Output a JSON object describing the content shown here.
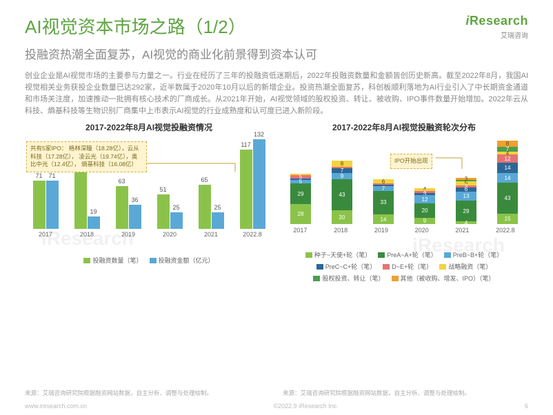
{
  "branding": {
    "logo_text": "iResearch",
    "logo_sub": "艾瑞咨询",
    "watermark1": "iResearch",
    "watermark2": "iResearch"
  },
  "header": {
    "title": "AI视觉资本市场之路（1/2）",
    "subtitle": "投融资热潮全面复苏，AI视觉的商业化前景得到资本认可"
  },
  "paragraph": "创业企业是AI视觉市场的主要参与力量之一。行业在经历了三年的投融资低迷期后，2022年投融资数量和金额皆创历史新高。截至2022年8月，我国AI视觉相关业务获投企业数量已达292家，近半数属于2020年10月以后的新增企业。投资热潮全面复苏，科创板顺利落地为AI行业引入了中长期资金通道和市场关注度，加速推动一批拥有核心技术的厂商成长。从2021年开始，AI视觉领域的股权投资、转让、被收购、IPO事件数量开始增加。2022年云从科技、熵基科技等生物识别厂商集中上市表示AI视觉的行业成熟度和认可度已进入新阶段。",
  "chart_left": {
    "title": "2017-2022年8月AI视觉投融资情况",
    "categories": [
      "2017",
      "2018",
      "2019",
      "2020",
      "2021",
      "2022.8"
    ],
    "series": [
      {
        "name": "投融资数量（笔）",
        "color": "#8bc34a",
        "values": [
          71,
          89,
          63,
          51,
          65,
          117
        ]
      },
      {
        "name": "投融资金额（亿元）",
        "color": "#5aa8d6",
        "values": [
          71,
          19,
          36,
          25,
          25,
          132
        ]
      }
    ],
    "ymax": 140,
    "callout": "共有5家IPO：\n格林深瞳（18.28亿），云从科技（17.28亿），\n凌云光（19.74亿），奥比中光（12.4亿），\n熵基科技（16.08亿）",
    "source": "来源：艾瑞咨询研究院根据融资网站数据，自主分析、调整与处理绘制。"
  },
  "chart_right": {
    "title": "2017-2022年8月AI视觉投融资轮次分布",
    "categories": [
      "2017",
      "2018",
      "2019",
      "2020",
      "2021",
      "2022.8"
    ],
    "ymax": 118,
    "colors": {
      "seed": "#8bc34a",
      "preA": "#3a8a3d",
      "preB": "#5aa8d6",
      "preC": "#2d6795",
      "de": "#e57373",
      "strategic": "#f2d43f",
      "equity": "#4a9e4e",
      "other": "#f0a030"
    },
    "segments": [
      {
        "key": "seed",
        "name": "种子~天使+轮（笔）"
      },
      {
        "key": "preA",
        "name": "PreA~A+轮（笔）"
      },
      {
        "key": "preB",
        "name": "PreB~B+轮（笔）"
      },
      {
        "key": "preC",
        "name": "PreC~C+轮（笔）"
      },
      {
        "key": "de",
        "name": "D~E+轮（笔）"
      },
      {
        "key": "strategic",
        "name": "战略融资（笔）"
      },
      {
        "key": "equity",
        "name": "股权投资、转让（笔）"
      },
      {
        "key": "other",
        "name": "其他（被收购、增发、IPO）（笔）"
      }
    ],
    "stacks": [
      {
        "cat": "2017",
        "seed": 28,
        "preA": 29,
        "preB": 5,
        "preC": 2,
        "de": 5,
        "strategic": 2,
        "equity": 0,
        "other": 0
      },
      {
        "cat": "2018",
        "seed": 20,
        "preA": 43,
        "preB": 9,
        "preC": 7,
        "de": 2,
        "strategic": 8,
        "equity": 0,
        "other": 0
      },
      {
        "cat": "2019",
        "seed": 14,
        "preA": 33,
        "preB": 7,
        "preC": 2,
        "de": 1,
        "strategic": 6,
        "equity": 0,
        "other": 0
      },
      {
        "cat": "2020",
        "seed": 9,
        "preA": 20,
        "preB": 12,
        "preC": 3,
        "de": 3,
        "strategic": 4,
        "equity": 0,
        "other": 0
      },
      {
        "cat": "2021",
        "seed": 4,
        "preA": 29,
        "preB": 13,
        "preC": 6,
        "de": 3,
        "strategic": 5,
        "equity": 2,
        "other": 3
      },
      {
        "cat": "2022.8",
        "seed": 15,
        "preA": 43,
        "preB": 14,
        "preC": 14,
        "de": 12,
        "strategic": 4,
        "equity": 7,
        "other": 8
      }
    ],
    "callout": "IPO开始出现",
    "source": "来源：艾瑞咨询研究院根据融资网站数据，自主分析、调整与处理绘制。"
  },
  "footer": {
    "left": "www.iresearch.com.cn",
    "center": "©2022.9 iResearch Inc.",
    "page": "6"
  }
}
